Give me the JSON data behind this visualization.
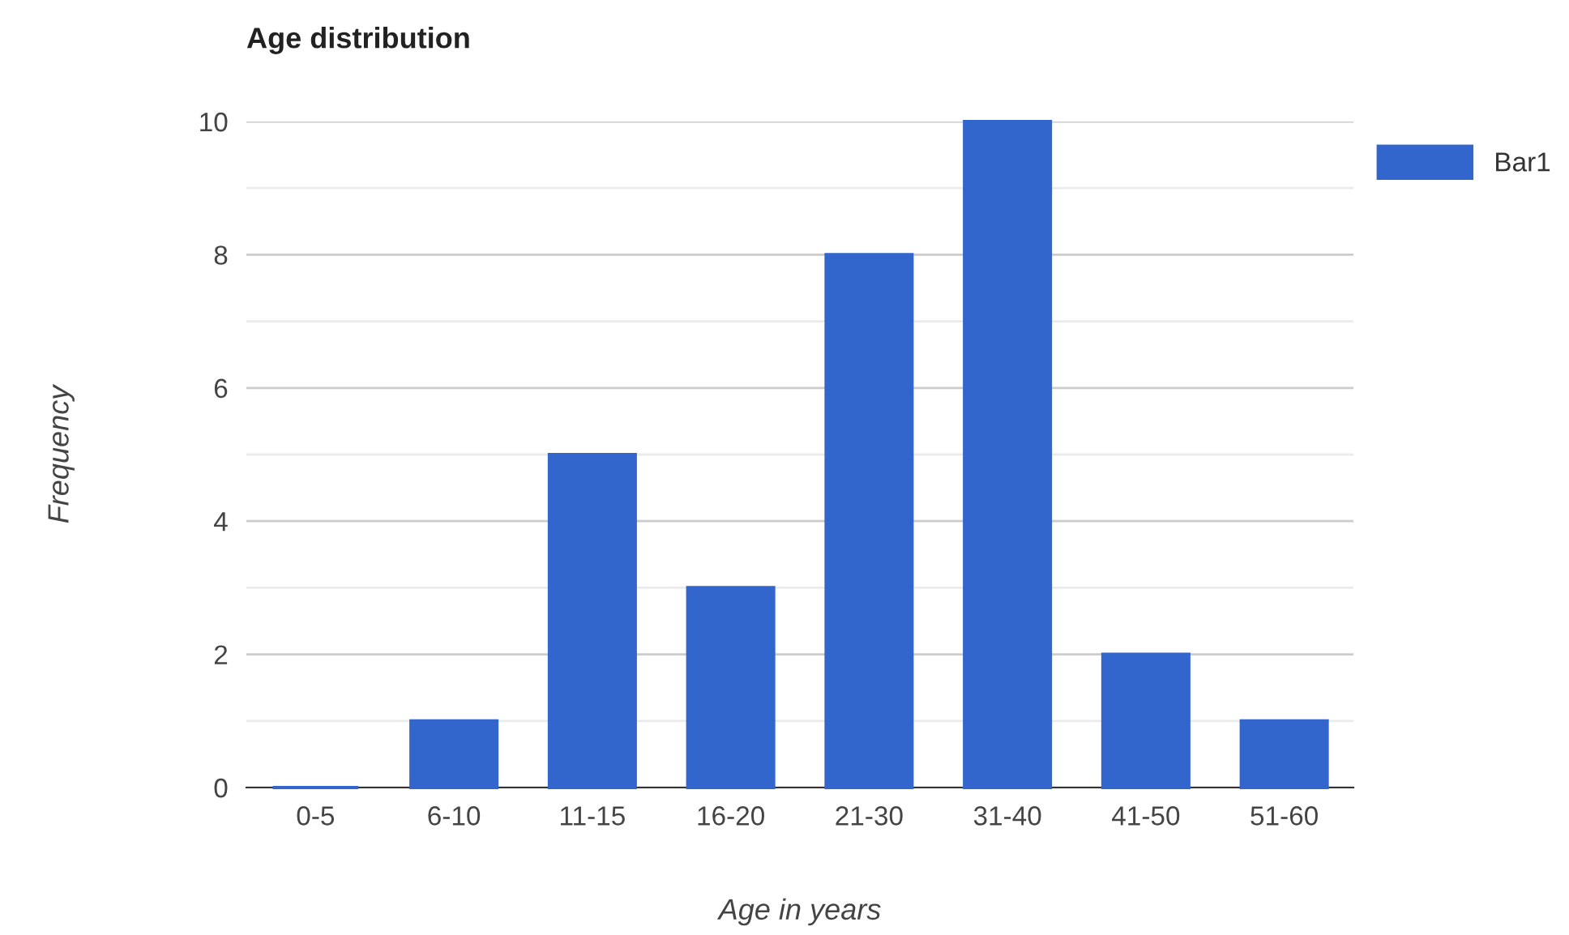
{
  "chart_data": {
    "type": "bar",
    "title": "Age distribution",
    "xlabel": "Age in years",
    "ylabel": "Frequency",
    "categories": [
      "0-5",
      "6-10",
      "11-15",
      "16-20",
      "21-30",
      "31-40",
      "41-50",
      "51-60"
    ],
    "series": [
      {
        "name": "Bar1",
        "color": "#3366cc",
        "values": [
          0,
          1,
          5,
          3,
          8,
          10,
          2,
          1
        ]
      }
    ],
    "ylim": [
      0,
      10
    ],
    "yticks": [
      0,
      {
        "value": 1,
        "label": null
      },
      2,
      {
        "value": 3,
        "label": null
      },
      4,
      {
        "value": 5,
        "label": null
      },
      6,
      {
        "value": 7,
        "label": null
      },
      8,
      {
        "value": 9,
        "label": null
      },
      10
    ],
    "grid": "y",
    "legend": "top right"
  }
}
